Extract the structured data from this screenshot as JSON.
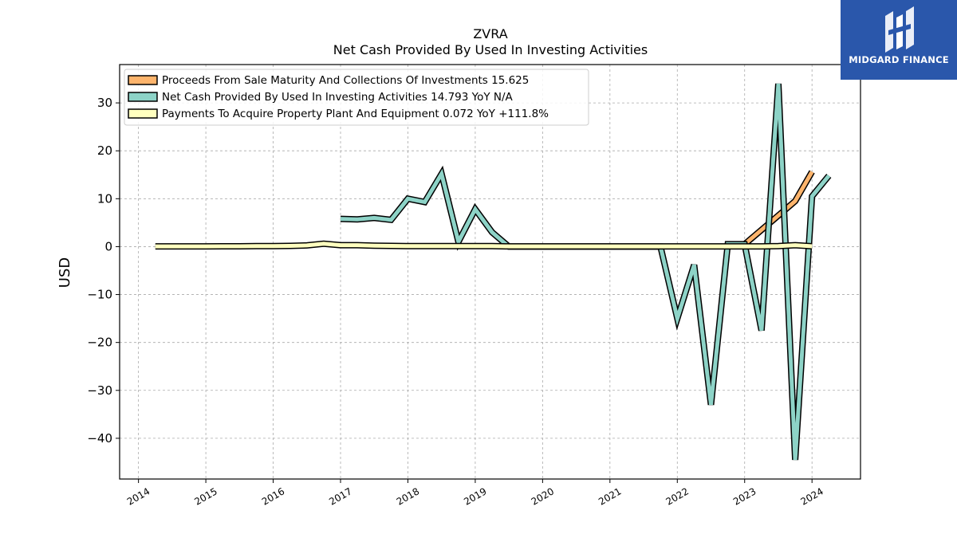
{
  "logo": {
    "text": "MIDGARD FINANCE",
    "background": "#2a57ab"
  },
  "chart_data": {
    "type": "line",
    "title": "ZVRA",
    "subtitle": "Net Cash Provided By Used In Investing Activities",
    "ylabel": "USD",
    "xlim": [
      2013.72,
      2024.72
    ],
    "ylim": [
      -48.5,
      38.0
    ],
    "yticks": [
      30,
      20,
      10,
      0,
      -10,
      -20,
      -30,
      -40
    ],
    "ytick_labels": [
      "30",
      "20",
      "10",
      "0",
      "−10",
      "−20",
      "−30",
      "−40"
    ],
    "xticks": [
      2014,
      2015,
      2016,
      2017,
      2018,
      2019,
      2020,
      2021,
      2022,
      2023,
      2024
    ],
    "xtick_labels": [
      "2014",
      "2015",
      "2016",
      "2017",
      "2018",
      "2019",
      "2020",
      "2021",
      "2022",
      "2023",
      "2024"
    ],
    "grid": true,
    "legend_position": "top-left",
    "series": [
      {
        "name": "Proceeds From Sale Maturity And Collections Of Investments",
        "legend": "Proceeds From Sale Maturity And Collections Of Investments  15.625",
        "color": "#fdb46c",
        "x": [
          2023.0,
          2023.25,
          2023.5,
          2023.75,
          2024.0
        ],
        "y": [
          0.5,
          3.5,
          6.5,
          9.5,
          15.625
        ]
      },
      {
        "name": "Net Cash Provided By Used In Investing Activities",
        "legend": "Net Cash Provided By Used In Investing Activities  14.793 YoY N/A",
        "color": "#8dd3c7",
        "x": [
          2017.0,
          2017.25,
          2017.5,
          2017.75,
          2018.0,
          2018.25,
          2018.5,
          2018.75,
          2019.0,
          2019.25,
          2019.5,
          2019.75,
          2020.0,
          2020.25,
          2020.5,
          2020.75,
          2021.0,
          2021.25,
          2021.5,
          2021.75,
          2022.0,
          2022.25,
          2022.5,
          2022.75,
          2023.0,
          2023.25,
          2023.5,
          2023.75,
          2024.0,
          2024.25
        ],
        "y": [
          5.8,
          5.7,
          6.0,
          5.6,
          10.0,
          9.3,
          15.2,
          1.0,
          7.8,
          3.0,
          0.0,
          0.0,
          0.0,
          0.0,
          0.0,
          0.0,
          0.0,
          0.0,
          0.0,
          0.0,
          -15.0,
          -3.8,
          -33.0,
          0.5,
          0.5,
          -17.5,
          34.0,
          -44.5,
          10.5,
          14.793
        ]
      },
      {
        "name": "Payments To Acquire Property Plant And Equipment",
        "legend": "Payments To Acquire Property Plant And Equipment  0.072 YoY +111.8%",
        "color": "#ffffbf",
        "x": [
          2014.25,
          2014.5,
          2014.75,
          2015.0,
          2015.25,
          2015.5,
          2015.75,
          2016.0,
          2016.25,
          2016.5,
          2016.75,
          2017.0,
          2017.25,
          2017.5,
          2017.75,
          2018.0,
          2018.25,
          2018.5,
          2018.75,
          2019.0,
          2019.25,
          2019.5,
          2019.75,
          2020.0,
          2020.25,
          2020.5,
          2020.75,
          2021.0,
          2021.25,
          2021.5,
          2021.75,
          2022.0,
          2022.25,
          2022.5,
          2022.75,
          2023.0,
          2023.25,
          2023.5,
          2023.75,
          2024.0
        ],
        "y": [
          0.05,
          0.05,
          0.05,
          0.06,
          0.07,
          0.08,
          0.1,
          0.1,
          0.15,
          0.25,
          0.6,
          0.3,
          0.3,
          0.2,
          0.15,
          0.1,
          0.1,
          0.1,
          0.1,
          0.1,
          0.1,
          0.05,
          0.05,
          0.05,
          0.05,
          0.05,
          0.05,
          0.05,
          0.05,
          0.05,
          0.05,
          0.05,
          0.05,
          0.05,
          0.05,
          0.05,
          0.05,
          0.1,
          0.3,
          0.072
        ]
      }
    ]
  }
}
